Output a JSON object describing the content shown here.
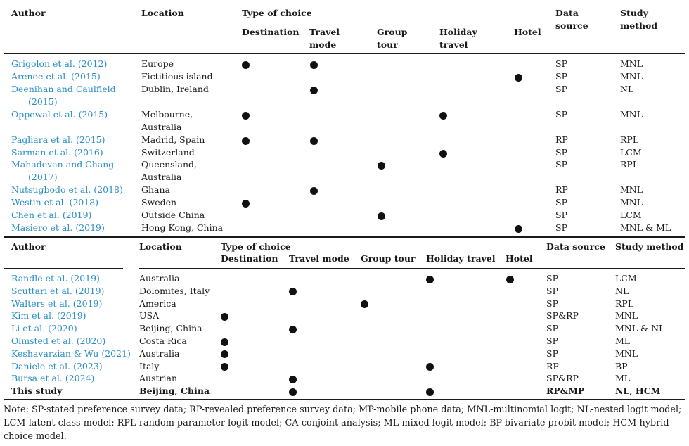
{
  "table1": {
    "headers": {
      "author": "Author",
      "location": "Location",
      "type_of_choice": "Type of choice",
      "destination": "Destination",
      "travel_mode_1": "Travel",
      "travel_mode_2": "mode",
      "group_tour_1": "Group",
      "group_tour_2": "tour",
      "holiday_1": "Holiday",
      "holiday_2": "travel",
      "hotel": "Hotel",
      "data_source_1": "Data",
      "data_source_2": "source",
      "study_method_1": "Study",
      "study_method_2": "method"
    },
    "rows": [
      {
        "author": [
          "Grigolon et al. (2012)"
        ],
        "location": [
          "Europe"
        ],
        "dest": true,
        "travel": true,
        "group": false,
        "holiday": false,
        "hotel": false,
        "source": "SP",
        "method": "MNL"
      },
      {
        "author": [
          "Arenoe et al. (2015)"
        ],
        "location": [
          "Fictitious island"
        ],
        "dest": false,
        "travel": false,
        "group": false,
        "holiday": false,
        "hotel": true,
        "source": "SP",
        "method": "MNL"
      },
      {
        "author": [
          "Deenihan and Caulfield",
          "(2015)"
        ],
        "location": [
          "Dublin, Ireland"
        ],
        "dest": false,
        "travel": true,
        "group": false,
        "holiday": false,
        "hotel": false,
        "source": "SP",
        "method": "NL"
      },
      {
        "author": [
          "Oppewal et al. (2015)"
        ],
        "location": [
          "Melbourne,",
          "Australia"
        ],
        "dest": true,
        "travel": false,
        "group": false,
        "holiday": true,
        "hotel": false,
        "source": "SP",
        "method": "MNL"
      },
      {
        "author": [
          "Pagliara et al. (2015)"
        ],
        "location": [
          "Madrid, Spain"
        ],
        "dest": true,
        "travel": true,
        "group": false,
        "holiday": false,
        "hotel": false,
        "source": "RP",
        "method": "RPL"
      },
      {
        "author": [
          "Sarman et al. (2016)"
        ],
        "location": [
          "Switzerland"
        ],
        "dest": false,
        "travel": false,
        "group": false,
        "holiday": true,
        "hotel": false,
        "source": "SP",
        "method": "LCM"
      },
      {
        "author": [
          "Mahadevan and Chang",
          "(2017)"
        ],
        "location": [
          "Queensland,",
          "Australia"
        ],
        "dest": false,
        "travel": false,
        "group": true,
        "holiday": false,
        "hotel": false,
        "source": "SP",
        "method": "RPL"
      },
      {
        "author": [
          "Nutsugbodo et al. (2018)"
        ],
        "location": [
          "Ghana"
        ],
        "dest": false,
        "travel": true,
        "group": false,
        "holiday": false,
        "hotel": false,
        "source": "RP",
        "method": "MNL"
      },
      {
        "author": [
          "Westin et al. (2018)"
        ],
        "location": [
          "Sweden"
        ],
        "dest": true,
        "travel": false,
        "group": false,
        "holiday": false,
        "hotel": false,
        "source": "SP",
        "method": "MNL"
      },
      {
        "author": [
          "Chen et al. (2019)"
        ],
        "location": [
          "Outside China"
        ],
        "dest": false,
        "travel": false,
        "group": true,
        "holiday": false,
        "hotel": false,
        "source": "SP",
        "method": "LCM"
      },
      {
        "author": [
          "Masiero et al. (2019)"
        ],
        "location": [
          "Hong Kong, China"
        ],
        "dest": false,
        "travel": false,
        "group": false,
        "holiday": false,
        "hotel": true,
        "source": "SP",
        "method": "MNL & ML"
      }
    ]
  },
  "table2": {
    "headers": {
      "author": "Author",
      "location": "Location",
      "type_of_choice": "Type of choice",
      "destination": "Destination",
      "travel_mode": "Travel mode",
      "group_tour": "Group tour",
      "holiday": "Holiday travel",
      "hotel": "Hotel",
      "data_source": "Data source",
      "study_method": "Study method"
    },
    "rows": [
      {
        "author": "Randle et al. (2019)",
        "location": "Australia",
        "dest": false,
        "travel": false,
        "group": false,
        "holiday": true,
        "hotel": true,
        "source": "SP",
        "method": "LCM",
        "bold": false
      },
      {
        "author": "Scuttari et al. (2019)",
        "location": "Dolomites, Italy",
        "dest": false,
        "travel": true,
        "group": false,
        "holiday": false,
        "hotel": false,
        "source": "SP",
        "method": "NL",
        "bold": false
      },
      {
        "author": "Walters et al. (2019)",
        "location": "America",
        "dest": false,
        "travel": false,
        "group": true,
        "holiday": false,
        "hotel": false,
        "source": "SP",
        "method": "RPL",
        "bold": false
      },
      {
        "author": "Kim et al. (2019)",
        "location": "USA",
        "dest": true,
        "travel": false,
        "group": false,
        "holiday": false,
        "hotel": false,
        "source": "SP&RP",
        "method": "MNL",
        "bold": false
      },
      {
        "author": "Li et al. (2020)",
        "location": "Beijing, China",
        "dest": false,
        "travel": true,
        "group": false,
        "holiday": false,
        "hotel": false,
        "source": "SP",
        "method": "MNL & NL",
        "bold": false
      },
      {
        "author": "Olmsted et al. (2020)",
        "location": "Costa Rica",
        "dest": true,
        "travel": false,
        "group": false,
        "holiday": false,
        "hotel": false,
        "source": "SP",
        "method": "ML",
        "bold": false
      },
      {
        "author": "Keshavarzian & Wu (2021)",
        "location": "Australia",
        "dest": true,
        "travel": false,
        "group": false,
        "holiday": false,
        "hotel": false,
        "source": "SP",
        "method": "MNL",
        "bold": false
      },
      {
        "author": "Daniele et al. (2023)",
        "location": "Italy",
        "dest": true,
        "travel": false,
        "group": false,
        "holiday": true,
        "hotel": false,
        "source": "RP",
        "method": "BP",
        "bold": false
      },
      {
        "author": "Bursa et al. (2024)",
        "location": "Austrian",
        "dest": false,
        "travel": true,
        "group": false,
        "holiday": false,
        "hotel": false,
        "source": "SP&RP",
        "method": "ML",
        "bold": false
      },
      {
        "author": "This study",
        "location": "Beijing, China",
        "dest": false,
        "travel": true,
        "group": false,
        "holiday": true,
        "hotel": false,
        "source": "RP&MP",
        "method": "NL, HCM",
        "bold": true
      }
    ]
  },
  "note": "Note: SP-stated preference survey data; RP-revealed preference survey data; MP-mobile phone data; MNL-multinomial logit; NL-nested logit model; LCM-latent class model; RPL-random parameter logit model; CA-conjoint analysis; ML-mixed logit model; BP-bivariate probit model; HCM-hybrid choice model."
}
